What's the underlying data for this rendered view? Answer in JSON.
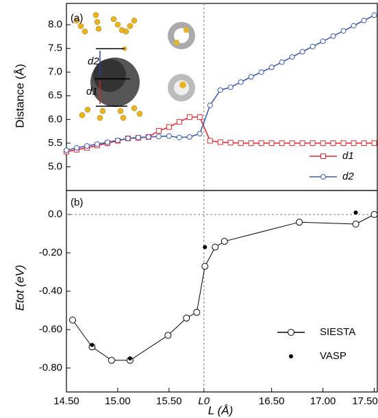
{
  "chart_data": [
    {
      "type": "line",
      "panel_label": "(a)",
      "ylabel": "Distance (Å)",
      "xlim": [
        14.5,
        17.53
      ],
      "ylim": [
        4.5,
        8.45
      ],
      "yticks": [
        {
          "value": 5,
          "label": "5.0"
        },
        5.5,
        {
          "value": 6,
          "label": "6.0"
        },
        6.5,
        {
          "value": 7,
          "label": "7.0"
        },
        7.5,
        {
          "value": 8,
          "label": "8.0"
        }
      ],
      "vline": 15.84,
      "legend": "lower right",
      "annotations": [
        "d2",
        "d1"
      ],
      "x": [
        14.5,
        14.6,
        14.7,
        14.8,
        14.9,
        15.0,
        15.1,
        15.2,
        15.3,
        15.4,
        15.5,
        15.6,
        15.7,
        15.8,
        15.9,
        16.0,
        16.1,
        16.2,
        16.3,
        16.4,
        16.5,
        16.6,
        16.7,
        16.8,
        16.9,
        17.0,
        17.1,
        17.2,
        17.3,
        17.4,
        17.5
      ],
      "series": [
        {
          "name": "d1",
          "color": "#e8262b",
          "marker": "square",
          "line": true,
          "values": [
            5.32,
            5.36,
            5.4,
            5.45,
            5.5,
            5.55,
            5.6,
            5.61,
            5.63,
            5.76,
            5.84,
            5.95,
            6.05,
            6.05,
            5.55,
            5.52,
            5.51,
            5.5,
            5.5,
            5.5,
            5.5,
            5.5,
            5.5,
            5.5,
            5.5,
            5.5,
            5.5,
            5.5,
            5.5,
            5.5,
            5.5
          ]
        },
        {
          "name": "d2",
          "color": "#3b5bb5",
          "marker": "circle",
          "line": true,
          "values": [
            5.35,
            5.4,
            5.44,
            5.48,
            5.52,
            5.56,
            5.6,
            5.62,
            5.63,
            5.64,
            5.65,
            5.62,
            5.63,
            5.7,
            6.3,
            6.62,
            6.68,
            6.79,
            6.9,
            7.0,
            7.1,
            7.21,
            7.32,
            7.43,
            7.54,
            7.65,
            7.76,
            7.87,
            7.98,
            8.09,
            8.2
          ]
        }
      ]
    },
    {
      "type": "line",
      "panel_label": "(b)",
      "ylabel": "Etot (eV)",
      "xlabel": "L (Å)",
      "xlim": [
        14.5,
        17.53
      ],
      "ylim": [
        -0.925,
        0.125
      ],
      "xticks": [
        {
          "value": 14.5,
          "label": "14.50"
        },
        {
          "value": 15,
          "label": "15.00"
        },
        {
          "value": 15.5,
          "label": "15.50"
        },
        {
          "value": 15.84,
          "label": "L0"
        },
        {
          "value": 16.5,
          "label": "16.50"
        },
        {
          "value": 17,
          "label": "17.00"
        },
        {
          "value": 17.5,
          "label": "17.50"
        }
      ],
      "yticks": [
        {
          "value": 0,
          "label": "0.0"
        },
        {
          "value": -0.2,
          "label": "-0.20"
        },
        {
          "value": -0.4,
          "label": "-0.40"
        },
        {
          "value": -0.6,
          "label": "-0.60"
        },
        {
          "value": -0.8,
          "label": "-0.80"
        }
      ],
      "vline": 15.84,
      "hline": 0,
      "legend": "lower right",
      "series": [
        {
          "name": "SIESTA",
          "color": "#000000",
          "marker": "open-circle",
          "line": true,
          "x": [
            14.56,
            14.75,
            14.94,
            15.12,
            15.49,
            15.67,
            15.77,
            15.85,
            15.95,
            16.04,
            16.77,
            17.32,
            17.5
          ],
          "values": [
            -0.55,
            -0.69,
            -0.76,
            -0.76,
            -0.63,
            -0.54,
            -0.51,
            -0.27,
            -0.17,
            -0.14,
            -0.04,
            -0.05,
            0.0
          ]
        },
        {
          "name": "VASP",
          "color": "#000000",
          "marker": "dot",
          "line": false,
          "x": [
            14.75,
            15.12,
            15.85,
            17.32
          ],
          "values": [
            -0.68,
            -0.75,
            -0.17,
            0.01
          ]
        }
      ]
    }
  ]
}
